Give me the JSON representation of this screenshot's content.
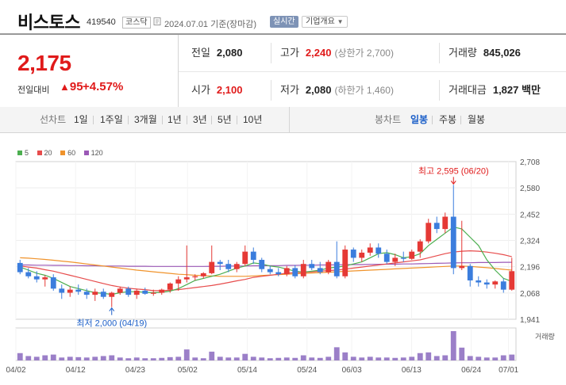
{
  "header": {
    "stock_name": "비스토스",
    "stock_code": "419540",
    "market": "코스닥",
    "base_date": "2024.07.01 기준(장마감)",
    "realtime_label": "실시간",
    "overview_label": "기업개요"
  },
  "price": {
    "current": "2,175",
    "change_label": "전일대비",
    "change_arrow": "▲",
    "change_value": "95",
    "change_pct": "+4.57%"
  },
  "stats": {
    "prev_close_label": "전일",
    "prev_close": "2,080",
    "high_label": "고가",
    "high": "2,240",
    "upper_limit": "(상한가 2,700)",
    "volume_label": "거래량",
    "volume": "845,026",
    "open_label": "시가",
    "open": "2,100",
    "low_label": "저가",
    "low": "2,080",
    "lower_limit": "(하한가 1,460)",
    "amount_label": "거래대금",
    "amount": "1,827 백만"
  },
  "period_bar": {
    "line_label": "선차트",
    "line_periods": [
      "1일",
      "1주일",
      "3개월",
      "1년",
      "3년",
      "5년",
      "10년"
    ],
    "candle_label": "봉차트",
    "candle_periods": [
      "일봉",
      "주봉",
      "월봉"
    ],
    "active_candle": "일봉"
  },
  "colors": {
    "up": "#e01a1a",
    "down": "#1a5ec8",
    "candle_up": "#e53935",
    "candle_down": "#3b7ddd",
    "ma5": "#4caf50",
    "ma20": "#e74c4c",
    "ma60": "#f0932b",
    "ma120": "#9b59b6",
    "volume": "#9b7fc8"
  },
  "chart_data": {
    "type": "candlestick",
    "legend": [
      {
        "name": "5",
        "color": "#4caf50"
      },
      {
        "name": "20",
        "color": "#e74c4c"
      },
      {
        "name": "60",
        "color": "#f0932b"
      },
      {
        "name": "120",
        "color": "#9b59b6"
      }
    ],
    "y_ticks": [
      "2,708",
      "2,580",
      "2,452",
      "2,324",
      "2,196",
      "2,068",
      "1,941"
    ],
    "ylim": [
      1941,
      2708
    ],
    "x_ticks": [
      "04/02",
      "04/12",
      "04/23",
      "05/02",
      "05/14",
      "05/24",
      "06/03",
      "06/13",
      "06/24",
      "07/01"
    ],
    "max_label": "최고 2,595 (06/20)",
    "min_label": "최저 2,000 (04/19)",
    "volume_label": "거래량",
    "candles": [
      {
        "o": 2215,
        "h": 2230,
        "l": 2160,
        "c": 2170
      },
      {
        "o": 2170,
        "h": 2190,
        "l": 2140,
        "c": 2150
      },
      {
        "o": 2150,
        "h": 2175,
        "l": 2120,
        "c": 2135
      },
      {
        "o": 2135,
        "h": 2155,
        "l": 2100,
        "c": 2145
      },
      {
        "o": 2145,
        "h": 2160,
        "l": 2080,
        "c": 2090
      },
      {
        "o": 2090,
        "h": 2110,
        "l": 2040,
        "c": 2070
      },
      {
        "o": 2070,
        "h": 2100,
        "l": 2050,
        "c": 2085
      },
      {
        "o": 2085,
        "h": 2110,
        "l": 2060,
        "c": 2075
      },
      {
        "o": 2075,
        "h": 2090,
        "l": 2040,
        "c": 2060
      },
      {
        "o": 2060,
        "h": 2090,
        "l": 2030,
        "c": 2075
      },
      {
        "o": 2075,
        "h": 2090,
        "l": 2040,
        "c": 2050
      },
      {
        "o": 2050,
        "h": 2075,
        "l": 2000,
        "c": 2070
      },
      {
        "o": 2070,
        "h": 2100,
        "l": 2060,
        "c": 2090
      },
      {
        "o": 2090,
        "h": 2100,
        "l": 2050,
        "c": 2060
      },
      {
        "o": 2060,
        "h": 2090,
        "l": 2040,
        "c": 2080
      },
      {
        "o": 2080,
        "h": 2095,
        "l": 2060,
        "c": 2065
      },
      {
        "o": 2065,
        "h": 2085,
        "l": 2055,
        "c": 2070
      },
      {
        "o": 2070,
        "h": 2090,
        "l": 2060,
        "c": 2085
      },
      {
        "o": 2085,
        "h": 2120,
        "l": 2070,
        "c": 2115
      },
      {
        "o": 2115,
        "h": 2150,
        "l": 2080,
        "c": 2135
      },
      {
        "o": 2135,
        "h": 2300,
        "l": 2120,
        "c": 2145
      },
      {
        "o": 2145,
        "h": 2160,
        "l": 2130,
        "c": 2150
      },
      {
        "o": 2150,
        "h": 2170,
        "l": 2140,
        "c": 2165
      },
      {
        "o": 2165,
        "h": 2300,
        "l": 2160,
        "c": 2220
      },
      {
        "o": 2220,
        "h": 2230,
        "l": 2180,
        "c": 2210
      },
      {
        "o": 2210,
        "h": 2230,
        "l": 2170,
        "c": 2185
      },
      {
        "o": 2185,
        "h": 2220,
        "l": 2170,
        "c": 2210
      },
      {
        "o": 2210,
        "h": 2300,
        "l": 2200,
        "c": 2270
      },
      {
        "o": 2270,
        "h": 2290,
        "l": 2210,
        "c": 2230
      },
      {
        "o": 2230,
        "h": 2240,
        "l": 2170,
        "c": 2185
      },
      {
        "o": 2185,
        "h": 2200,
        "l": 2160,
        "c": 2170
      },
      {
        "o": 2170,
        "h": 2190,
        "l": 2150,
        "c": 2160
      },
      {
        "o": 2160,
        "h": 2200,
        "l": 2150,
        "c": 2190
      },
      {
        "o": 2190,
        "h": 2205,
        "l": 2140,
        "c": 2150
      },
      {
        "o": 2150,
        "h": 2230,
        "l": 2140,
        "c": 2210
      },
      {
        "o": 2210,
        "h": 2230,
        "l": 2180,
        "c": 2190
      },
      {
        "o": 2190,
        "h": 2220,
        "l": 2160,
        "c": 2170
      },
      {
        "o": 2170,
        "h": 2230,
        "l": 2160,
        "c": 2220
      },
      {
        "o": 2220,
        "h": 2320,
        "l": 2140,
        "c": 2150
      },
      {
        "o": 2150,
        "h": 2300,
        "l": 2140,
        "c": 2280
      },
      {
        "o": 2280,
        "h": 2290,
        "l": 2220,
        "c": 2240
      },
      {
        "o": 2240,
        "h": 2280,
        "l": 2220,
        "c": 2265
      },
      {
        "o": 2265,
        "h": 2310,
        "l": 2250,
        "c": 2290
      },
      {
        "o": 2290,
        "h": 2310,
        "l": 2240,
        "c": 2260
      },
      {
        "o": 2260,
        "h": 2280,
        "l": 2210,
        "c": 2220
      },
      {
        "o": 2220,
        "h": 2260,
        "l": 2200,
        "c": 2240
      },
      {
        "o": 2240,
        "h": 2270,
        "l": 2220,
        "c": 2235
      },
      {
        "o": 2235,
        "h": 2280,
        "l": 2230,
        "c": 2270
      },
      {
        "o": 2270,
        "h": 2330,
        "l": 2240,
        "c": 2320
      },
      {
        "o": 2320,
        "h": 2430,
        "l": 2310,
        "c": 2410
      },
      {
        "o": 2410,
        "h": 2440,
        "l": 2360,
        "c": 2380
      },
      {
        "o": 2380,
        "h": 2460,
        "l": 2360,
        "c": 2440
      },
      {
        "o": 2440,
        "h": 2595,
        "l": 2160,
        "c": 2190
      },
      {
        "o": 2190,
        "h": 2420,
        "l": 2180,
        "c": 2200
      },
      {
        "o": 2200,
        "h": 2210,
        "l": 2100,
        "c": 2130
      },
      {
        "o": 2130,
        "h": 2150,
        "l": 2100,
        "c": 2120
      },
      {
        "o": 2120,
        "h": 2135,
        "l": 2090,
        "c": 2110
      },
      {
        "o": 2110,
        "h": 2130,
        "l": 2090,
        "c": 2125
      },
      {
        "o": 2125,
        "h": 2140,
        "l": 2070,
        "c": 2085
      },
      {
        "o": 2085,
        "h": 2240,
        "l": 2080,
        "c": 2175
      }
    ],
    "volumes": [
      20,
      12,
      10,
      14,
      16,
      8,
      10,
      9,
      8,
      10,
      12,
      14,
      8,
      6,
      8,
      6,
      6,
      7,
      9,
      10,
      30,
      8,
      6,
      24,
      10,
      8,
      8,
      18,
      10,
      8,
      6,
      7,
      8,
      7,
      14,
      8,
      7,
      10,
      36,
      22,
      10,
      8,
      10,
      8,
      8,
      7,
      8,
      10,
      20,
      22,
      12,
      14,
      80,
      35,
      12,
      10,
      8,
      8,
      14,
      16
    ],
    "ma5": [
      2195,
      2180,
      2165,
      2155,
      2140,
      2120,
      2100,
      2090,
      2080,
      2070,
      2067,
      2062,
      2070,
      2075,
      2075,
      2072,
      2070,
      2072,
      2078,
      2090,
      2110,
      2130,
      2140,
      2150,
      2160,
      2175,
      2190,
      2200,
      2215,
      2210,
      2200,
      2195,
      2185,
      2175,
      2170,
      2175,
      2180,
      2190,
      2195,
      2200,
      2210,
      2220,
      2240,
      2260,
      2265,
      2255,
      2240,
      2245,
      2260,
      2300,
      2330,
      2360,
      2390,
      2380,
      2340,
      2300,
      2230,
      2180,
      2140,
      2125
    ],
    "ma20": [
      2200,
      2195,
      2190,
      2182,
      2175,
      2165,
      2155,
      2145,
      2135,
      2125,
      2115,
      2105,
      2098,
      2092,
      2088,
      2085,
      2080,
      2080,
      2082,
      2085,
      2090,
      2095,
      2100,
      2105,
      2112,
      2120,
      2128,
      2135,
      2145,
      2150,
      2155,
      2160,
      2165,
      2168,
      2170,
      2172,
      2175,
      2178,
      2180,
      2185,
      2190,
      2195,
      2200,
      2205,
      2210,
      2215,
      2220,
      2225,
      2230,
      2240,
      2250,
      2260,
      2268,
      2272,
      2274,
      2272,
      2268,
      2262,
      2255,
      2245
    ],
    "ma60": [
      2240,
      2238,
      2235,
      2232,
      2228,
      2224,
      2220,
      2215,
      2210,
      2205,
      2200,
      2195,
      2190,
      2185,
      2180,
      2176,
      2172,
      2168,
      2164,
      2160,
      2158,
      2155,
      2153,
      2152,
      2150,
      2150,
      2150,
      2150,
      2152,
      2154,
      2156,
      2158,
      2160,
      2162,
      2164,
      2166,
      2168,
      2170,
      2172,
      2174,
      2176,
      2178,
      2180,
      2182,
      2184,
      2186,
      2188,
      2190,
      2192,
      2194,
      2196,
      2198,
      2200,
      2200,
      2198,
      2195,
      2192,
      2188,
      2184,
      2180
    ],
    "ma120": [
      2205,
      2205,
      2204,
      2204,
      2203,
      2203,
      2202,
      2202,
      2201,
      2201,
      2200,
      2200,
      2200,
      2199,
      2199,
      2199,
      2198,
      2198,
      2198,
      2198,
      2198,
      2198,
      2198,
      2199,
      2199,
      2200,
      2200,
      2200,
      2201,
      2201,
      2202,
      2202,
      2203,
      2203,
      2204,
      2204,
      2205,
      2205,
      2206,
      2206,
      2207,
      2207,
      2208,
      2208,
      2209,
      2209,
      2210,
      2210,
      2211,
      2212,
      2213,
      2214,
      2215,
      2216,
      2216,
      2217,
      2217,
      2217,
      2218,
      2218
    ]
  }
}
